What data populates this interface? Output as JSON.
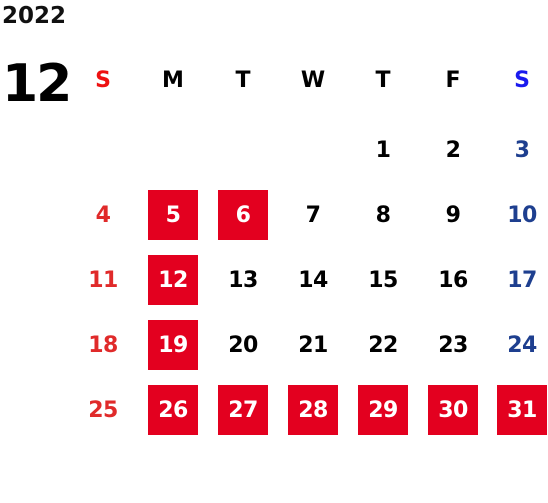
{
  "calendar": {
    "year": "2022",
    "month": "12",
    "weekdays": [
      "S",
      "M",
      "T",
      "W",
      "T",
      "F",
      "S"
    ],
    "weeks": [
      [
        "",
        "",
        "",
        "",
        "1",
        "2",
        "3"
      ],
      [
        "4",
        "5",
        "6",
        "7",
        "8",
        "9",
        "10"
      ],
      [
        "11",
        "12",
        "13",
        "14",
        "15",
        "16",
        "17"
      ],
      [
        "18",
        "19",
        "20",
        "21",
        "22",
        "23",
        "24"
      ],
      [
        "25",
        "26",
        "27",
        "28",
        "29",
        "30",
        "31"
      ]
    ],
    "highlighted_days": [
      "5",
      "6",
      "12",
      "19",
      "26",
      "27",
      "28",
      "29",
      "30",
      "31"
    ]
  },
  "colors": {
    "highlight": "#e3001f",
    "sunday": "#e02a2a",
    "saturday": "#1e3f8f",
    "sunday_header": "#ee1111",
    "saturday_header": "#1a1aee"
  }
}
